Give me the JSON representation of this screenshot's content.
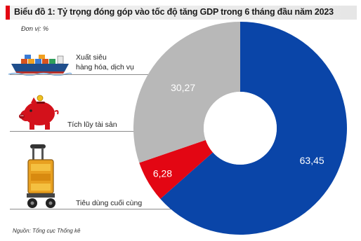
{
  "header": {
    "title": "Biểu đồ 1: Tỷ trọng đóng góp vào tốc độ tăng GDP trong 6 tháng đầu năm 2023",
    "unit": "Đơn vị: %",
    "source": "Nguồn: Tổng cục Thống kê"
  },
  "colors": {
    "title_accent": "#e30613",
    "export": "#0a45a8",
    "accumulation": "#e30613",
    "consumption": "#b8b8b8"
  },
  "categories": [
    {
      "label_line1": "Xuất siêu",
      "label_line2": "hàng hóa, dịch vụ",
      "icon": "cargo-ship-icon"
    },
    {
      "label_line1": "Tích lũy tài sản",
      "label_line2": "",
      "icon": "piggy-bank-icon"
    },
    {
      "label_line1": "Tiêu dùng cuối cùng",
      "label_line2": "",
      "icon": "shopping-cart-icon"
    }
  ],
  "chart_data": {
    "type": "pie",
    "title": "Biểu đồ 1: Tỷ trọng đóng góp vào tốc độ tăng GDP trong 6 tháng đầu năm 2023",
    "categories": [
      "Xuất siêu hàng hóa, dịch vụ",
      "Tích lũy tài sản",
      "Tiêu dùng cuối cùng"
    ],
    "values": [
      63.45,
      6.28,
      30.27
    ],
    "value_labels": [
      "63,45",
      "6,28",
      "30,27"
    ],
    "colors": [
      "#0a45a8",
      "#e30613",
      "#b8b8b8"
    ],
    "donut": true,
    "legend": "left"
  }
}
